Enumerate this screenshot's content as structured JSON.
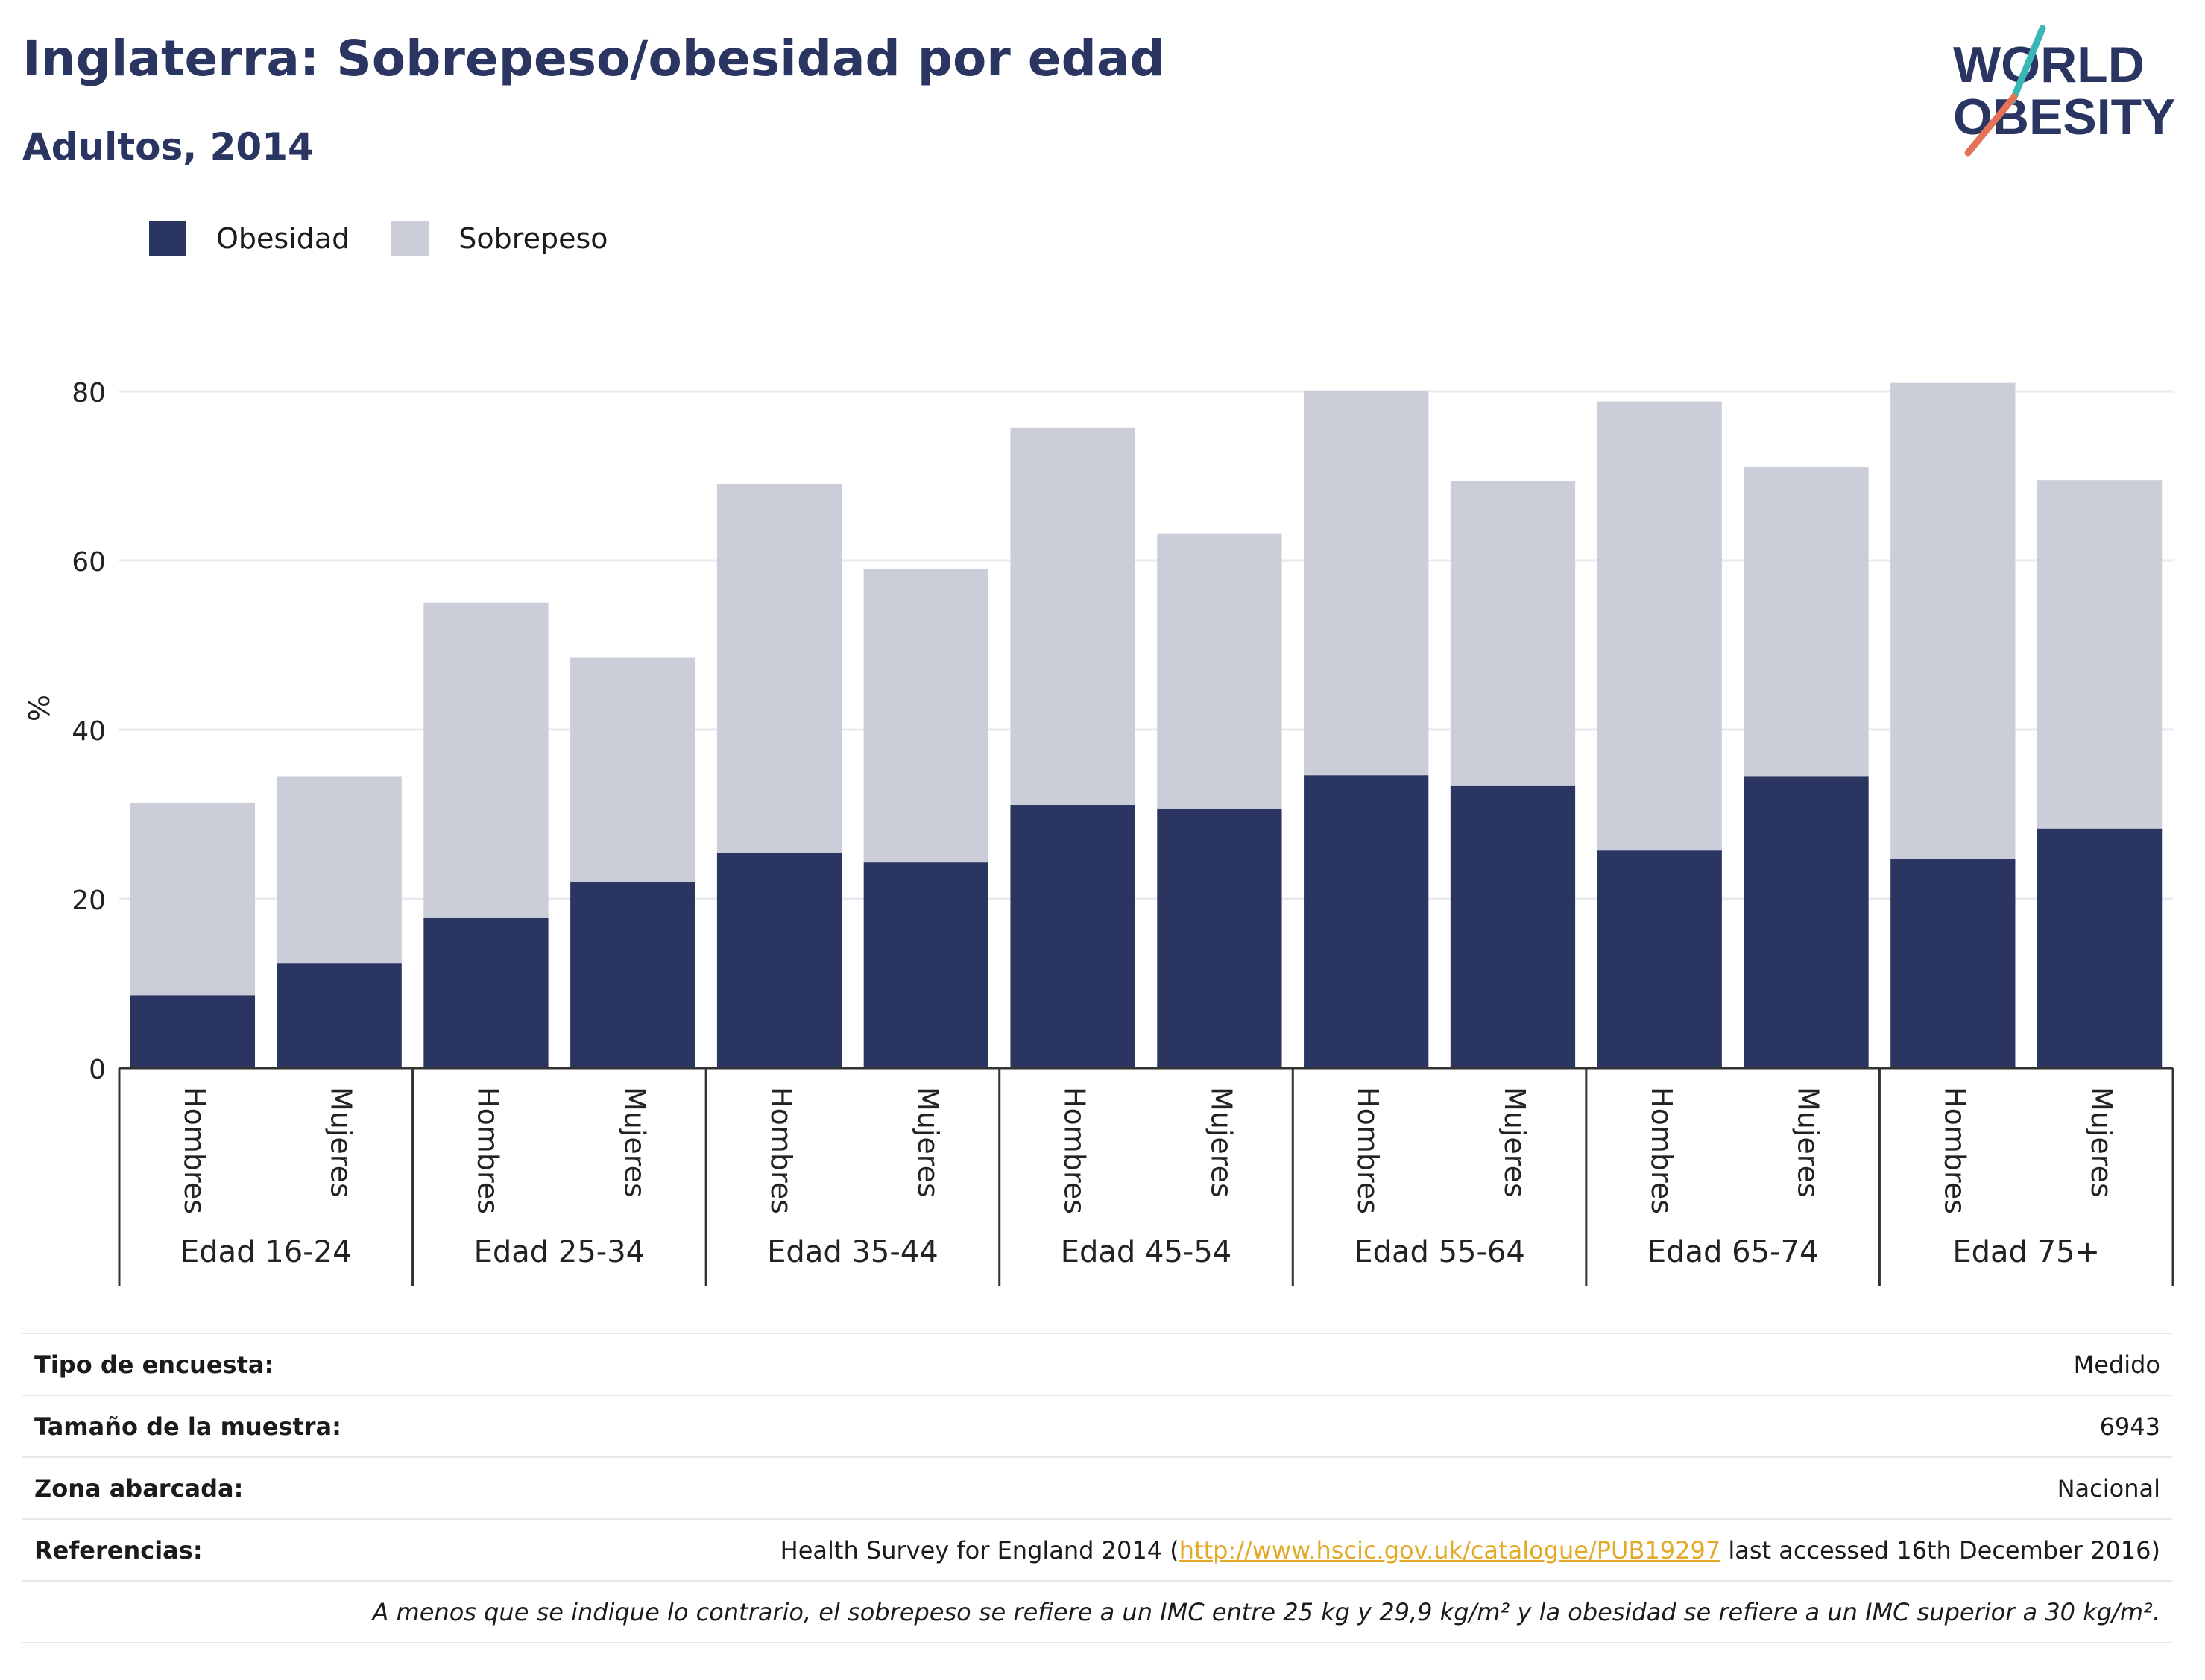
{
  "header": {
    "title": "Inglaterra: Sobrepeso/obesidad por edad",
    "subtitle": "Adultos, 2014"
  },
  "logo": {
    "line1": "WORLD",
    "line2": "OBESITY"
  },
  "colors": {
    "obesity": "#2a3561",
    "overweight": "#cbcdd9",
    "brand": "#2a3561",
    "link": "#e3a928",
    "logo_teal": "#3ab8b5",
    "logo_coral": "#e5735a"
  },
  "legend": [
    {
      "label": "Obesidad",
      "color": "#2a3561"
    },
    {
      "label": "Sobrepeso",
      "color": "#cbcdd9"
    }
  ],
  "chart_data": {
    "type": "bar",
    "stacked": true,
    "ylabel": "%",
    "xlabel": "",
    "ylim": [
      0,
      90
    ],
    "yticks": [
      0,
      20,
      40,
      60,
      80
    ],
    "grid": true,
    "legend_position": "top-left",
    "groups": [
      "Edad 16-24",
      "Edad 25-34",
      "Edad 35-44",
      "Edad 45-54",
      "Edad 55-64",
      "Edad 65-74",
      "Edad 75+"
    ],
    "subcategories": [
      "Hombres",
      "Mujeres"
    ],
    "series": [
      {
        "name": "Obesidad",
        "values": [
          8.6,
          12.4,
          17.8,
          22.0,
          25.4,
          24.3,
          31.1,
          30.6,
          34.6,
          33.4,
          25.7,
          34.5,
          24.7,
          28.3
        ]
      },
      {
        "name": "Sobrepeso",
        "values": [
          22.7,
          22.1,
          37.2,
          26.5,
          43.6,
          34.7,
          44.6,
          32.6,
          45.5,
          36.0,
          53.1,
          36.6,
          56.3,
          41.2
        ]
      }
    ],
    "totals": [
      31.3,
      34.5,
      55.0,
      48.5,
      69.0,
      59.0,
      75.7,
      63.2,
      80.1,
      69.4,
      78.8,
      71.1,
      81.0,
      69.5
    ]
  },
  "info": [
    {
      "label": "Tipo de encuesta:",
      "value": "Medido"
    },
    {
      "label": "Tamaño de la muestra:",
      "value": "6943"
    },
    {
      "label": "Zona abarcada:",
      "value": "Nacional"
    }
  ],
  "reference": {
    "label": "Referencias:",
    "prefix": "Health Survey for England 2014 (",
    "link": "http://www.hscic.gov.uk/catalogue/PUB19297",
    "suffix": " last accessed 16th December 2016)"
  },
  "note": "A menos que se indique lo contrario, el sobrepeso se refiere a un IMC entre 25 kg y 29,9 kg/m² y la obesidad se refiere a un IMC superior a 30 kg/m²."
}
